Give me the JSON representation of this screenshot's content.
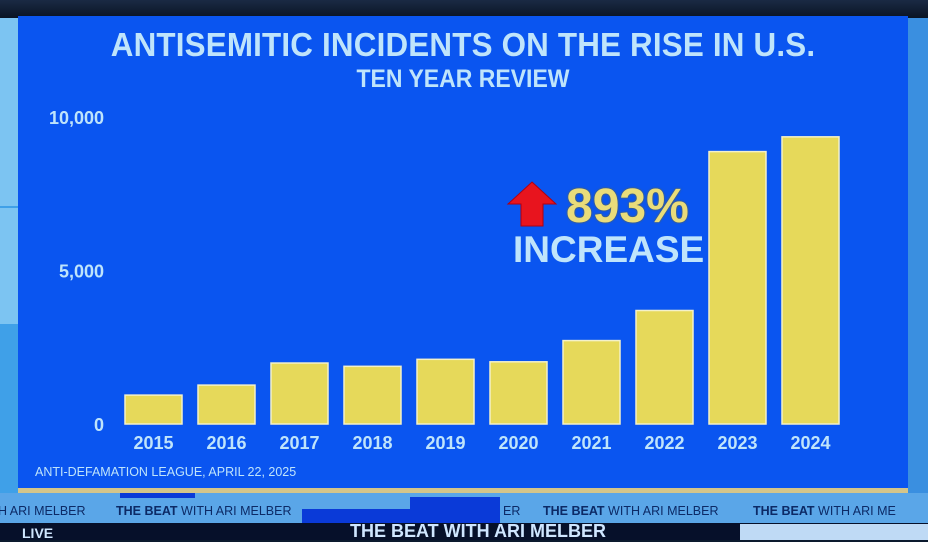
{
  "title": "ANTISEMITIC INCIDENTS ON THE RISE IN U.S.",
  "subtitle": "TEN YEAR REVIEW",
  "callout": {
    "percent": "893%",
    "label": "INCREASE",
    "arrow_icon": "red-up-arrow",
    "arrow_color": "#e8141e"
  },
  "source": "ANTI-DEFAMATION LEAGUE, APRIL 22, 2025",
  "colors": {
    "background": "#0a55f0",
    "bar": "#e6d95a",
    "text": "#bfe4fb",
    "percent": "#e9dc7a"
  },
  "ticker": {
    "items": [
      "H ARI MELBER",
      "THE BEAT WITH ARI MELBER",
      "ER",
      "THE BEAT WITH ARI MELBER",
      "THE BEAT WITH ARI ME"
    ]
  },
  "lower_third": {
    "live": "LIVE",
    "show": "THE BEAT WITH ARI MELBER"
  },
  "chart_data": {
    "type": "bar",
    "title": "ANTISEMITIC INCIDENTS ON THE RISE IN U.S.",
    "subtitle": "TEN YEAR REVIEW",
    "xlabel": "",
    "ylabel": "",
    "categories": [
      "2015",
      "2016",
      "2017",
      "2018",
      "2019",
      "2020",
      "2021",
      "2022",
      "2023",
      "2024"
    ],
    "values": [
      941,
      1267,
      1986,
      1879,
      2107,
      2026,
      2717,
      3697,
      8873,
      9354
    ],
    "ylim": [
      0,
      10000
    ],
    "yticks": [
      0,
      5000,
      10000
    ],
    "ytick_labels": [
      "0",
      "5,000",
      "10,000"
    ],
    "grid": false,
    "legend": "none",
    "annotations": [
      "893% INCREASE"
    ]
  }
}
